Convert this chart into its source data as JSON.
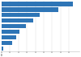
{
  "values": [
    1700000,
    1350000,
    900000,
    750000,
    580000,
    430000,
    340000,
    260000,
    45000
  ],
  "bar_color": "#2e75b6",
  "background_color": "#ffffff",
  "xlim": [
    0,
    1850000
  ],
  "bar_height": 0.78,
  "figsize": [
    1.0,
    0.71
  ],
  "dpi": 100,
  "grid_color": "#d9d9d9",
  "xticks": [
    0,
    200000,
    400000,
    600000,
    800000,
    1000000,
    1200000,
    1400000,
    1600000
  ],
  "xtick_labels": [
    "0",
    "",
    "",
    "",
    "",
    "",
    "",
    "",
    ""
  ]
}
